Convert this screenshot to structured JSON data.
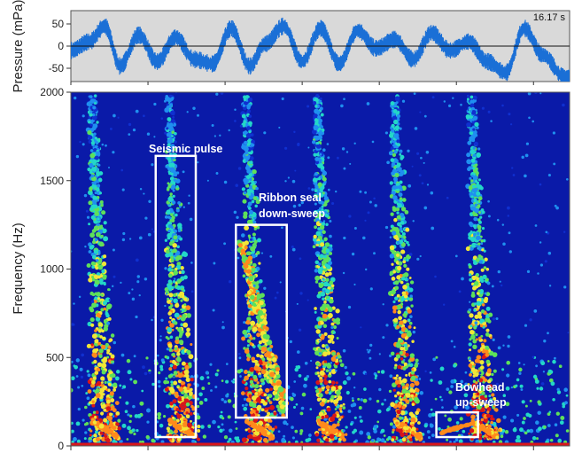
{
  "chart_data": [
    {
      "type": "line",
      "panel": "waveform",
      "ylabel": "Pressure (mPa)",
      "yticks": [
        50,
        0,
        -50
      ],
      "ylim": [
        -80,
        80
      ],
      "duration_label": "16.17 s",
      "background_color": "#d9d9d9",
      "trace_color": "#1a6fd6",
      "envelope": {
        "x_s": [
          0.0,
          0.6,
          1.1,
          1.6,
          2.2,
          2.8,
          3.4,
          4.0,
          4.6,
          5.2,
          5.8,
          6.3,
          6.9,
          7.5,
          8.1,
          8.7,
          9.3,
          9.9,
          10.5,
          11.1,
          11.7,
          12.3,
          12.9,
          13.5,
          14.1,
          14.7,
          15.3,
          16.0
        ],
        "y_mpa": [
          -10,
          10,
          45,
          -45,
          25,
          -35,
          20,
          -30,
          -40,
          40,
          -45,
          5,
          45,
          -35,
          40,
          -40,
          35,
          -5,
          15,
          -30,
          30,
          -10,
          10,
          -35,
          -60,
          40,
          -20,
          -70
        ]
      }
    },
    {
      "type": "heatmap",
      "panel": "spectrogram",
      "ylabel": "Frequency (Hz)",
      "yticks": [
        0,
        500,
        1000,
        1500,
        2000
      ],
      "ylim": [
        0,
        2000
      ],
      "xlim_s": [
        0,
        16.17
      ],
      "colormap": "jet",
      "background_color": "#0a1aa8",
      "pulse_times_s": [
        0.55,
        3.05,
        5.55,
        7.85,
        10.35,
        12.85
      ],
      "annotations": [
        {
          "label": "Seismic pulse",
          "t_start_s": 2.75,
          "t_end_s": 4.05,
          "f_low_hz": 50,
          "f_high_hz": 1640
        },
        {
          "label": "Ribbon seal down-sweep",
          "line1": "Ribbon seal",
          "line2": "down-sweep",
          "t_start_s": 5.35,
          "t_end_s": 7.0,
          "f_low_hz": 160,
          "f_high_hz": 1250
        },
        {
          "label": "Bowhead up-sweep",
          "line1": "Bowhead",
          "line2": "up-sweep",
          "t_start_s": 11.85,
          "t_end_s": 13.2,
          "f_low_hz": 50,
          "f_high_hz": 190
        }
      ],
      "box_color": "#ffffff"
    }
  ]
}
